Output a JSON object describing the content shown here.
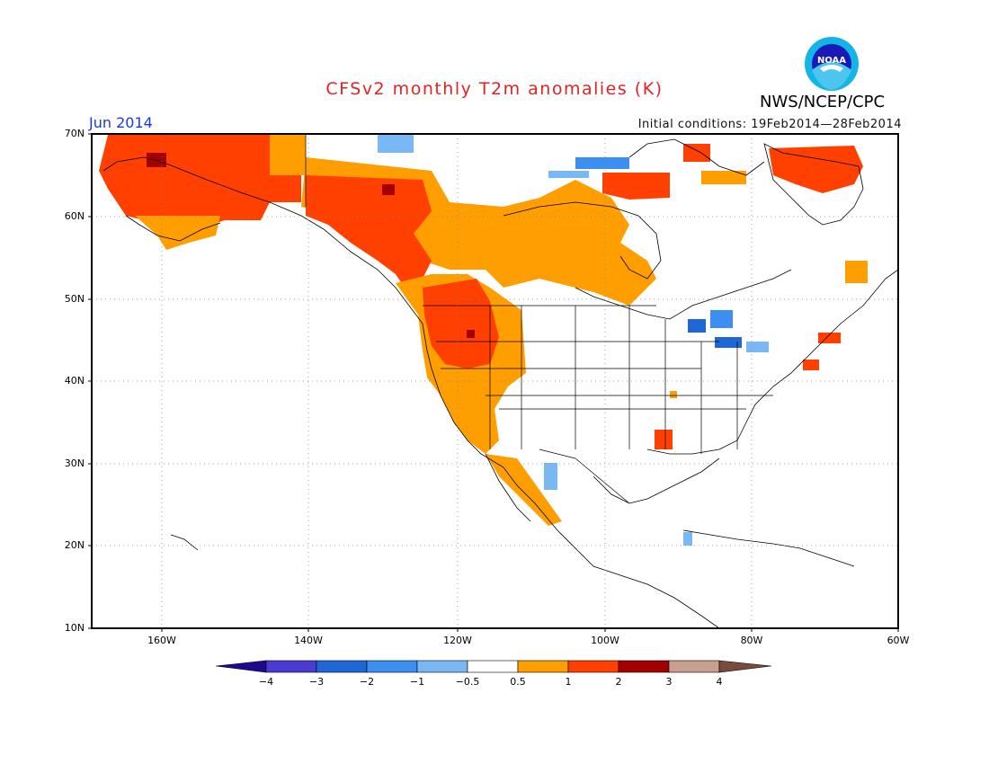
{
  "header": {
    "title": "CFSv2 monthly T2m anomalies (K)",
    "month": "Jun 2014",
    "initial_conditions": "Initial conditions: 19Feb2014—28Feb2014",
    "agency": "NWS/NCEP/CPC",
    "logo_text": "NOAA"
  },
  "map": {
    "lat_labels": [
      "70N",
      "60N",
      "50N",
      "40N",
      "30N",
      "20N",
      "10N"
    ],
    "lon_labels": [
      "160W",
      "140W",
      "120W",
      "100W",
      "80W",
      "60W"
    ],
    "grid": true,
    "colors": {
      "ocean": "#ffffff",
      "coast": "#000000",
      "grid": "#888888"
    }
  },
  "colorbar": {
    "labels": [
      "−4",
      "−3",
      "−2",
      "−1",
      "−0.5",
      "0.5",
      "1",
      "2",
      "3",
      "4"
    ],
    "colors": [
      "#1e0a8c",
      "#4a3bd1",
      "#1f66d6",
      "#3c8ff0",
      "#7ab8f4",
      "#ffffff",
      "#ff9e00",
      "#ff4000",
      "#a30000",
      "#c8a090",
      "#7a4a3c"
    ]
  }
}
